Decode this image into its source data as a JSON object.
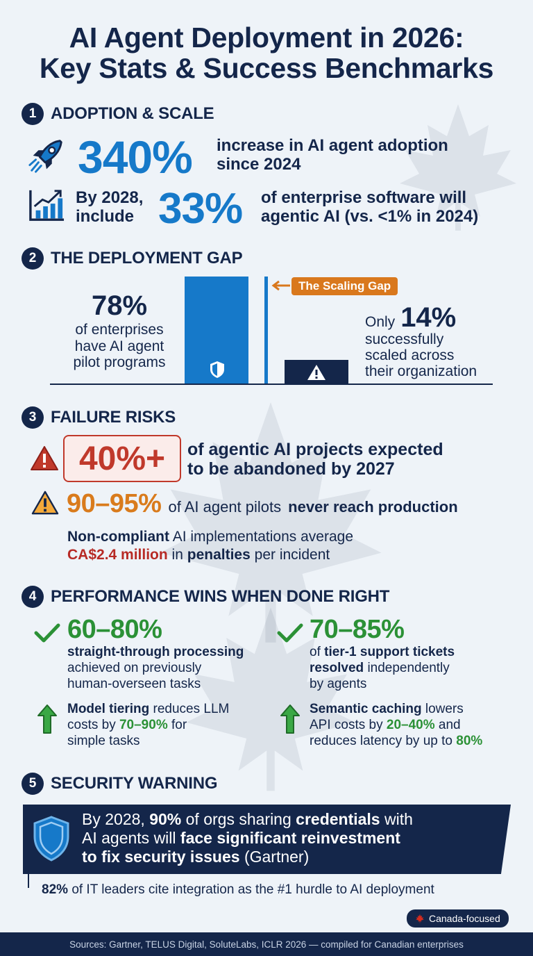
{
  "title": {
    "line1": "AI Agent Deployment in 2026:",
    "line2": "Key Stats & Success Benchmarks"
  },
  "sections": [
    {
      "number": "1",
      "title": "ADOPTION & SCALE"
    },
    {
      "number": "2",
      "title": "THE DEPLOYMENT GAP"
    },
    {
      "number": "3",
      "title": "FAILURE RISKS"
    },
    {
      "number": "4",
      "title": "PERFORMANCE WINS WHEN DONE RIGHT"
    },
    {
      "number": "5",
      "title": "SECURITY WARNING"
    }
  ],
  "adoption": {
    "stat1_value": "340%",
    "stat1_text_line1": "increase in AI agent adoption",
    "stat1_text_line2": "since 2024",
    "stat2_prefix_line1": "By 2028,",
    "stat2_prefix_line2": "include",
    "stat2_value": "33%",
    "stat2_text_line1": "of enterprise software will",
    "stat2_text_line2": "agentic AI (vs. <1% in 2024)",
    "icons": [
      "rocket-icon",
      "growth-chart-icon"
    ]
  },
  "gap": {
    "left_value": "78%",
    "left_text_line1": "of enterprises",
    "left_text_line2": "have AI agent",
    "left_text_line3": "pilot programs",
    "tag": "The Scaling Gap",
    "right_prefix": "Only",
    "right_value": "14%",
    "right_text_line1": "successfully",
    "right_text_line2": "scaled across",
    "right_text_line3": "their organization",
    "icons": [
      "shield-icon",
      "warning-icon"
    ]
  },
  "risks": {
    "r1_value": "40%+",
    "r1_text_line1": "of agentic AI projects expected",
    "r1_text_line2": "to be abandoned by 2027",
    "r2_value": "90–95%",
    "r2_text_plain": "of AI agent pilots",
    "r2_text_bold": "never reach production",
    "r3_bold": "Non-compliant",
    "r3_plain": "AI implementations average",
    "r3_money": "CA$2.4 million",
    "r3_in": "in",
    "r3_penalties": "penalties",
    "r3_tail": "per incident"
  },
  "performance": {
    "left_value": "60–80%",
    "left_bold": "straight-through processing",
    "left_line2": "achieved on previously",
    "left_line3": "human-overseen tasks",
    "right_value": "70–85%",
    "right_line1_plain": "of",
    "right_line1_bold": "tier-1 support tickets",
    "right_line2_bold": "resolved",
    "right_line2_plain": "independently",
    "right_line3": "by agents",
    "tip1_bold": "Model tiering",
    "tip1_plain1": "reduces LLM",
    "tip1_plain2": "costs by",
    "tip1_green": "70–90%",
    "tip1_plain3": "for",
    "tip1_plain4": "simple tasks",
    "tip2_bold": "Semantic caching",
    "tip2_plain1": "lowers",
    "tip2_plain2": "API costs by",
    "tip2_green1": "20–40%",
    "tip2_plain3": "and",
    "tip2_plain4": "reduces latency by up to",
    "tip2_green2": "80%"
  },
  "security": {
    "l1_a": "By 2028,",
    "l1_b": "90%",
    "l1_c": "of orgs sharing",
    "l1_d": "credentials",
    "l1_e": "with",
    "l2_a": "AI agents will",
    "l2_b": "face significant reinvestment",
    "l3_a": "to fix security issues",
    "l3_b": "(Gartner)",
    "note_bold": "82%",
    "note_text": "of IT leaders cite integration as the #1 hurdle to AI deployment",
    "badge": "Canada-focused"
  },
  "footer": {
    "sources": "Sources: Gartner, TELUS Digital, SoluteLabs, ICLR 2026 — compiled for Canadian enterprises"
  },
  "colors": {
    "navy": "#14264a",
    "blue": "#1679c9",
    "green": "#2b9136",
    "red": "#b72a25",
    "orange": "#d97b1c"
  }
}
